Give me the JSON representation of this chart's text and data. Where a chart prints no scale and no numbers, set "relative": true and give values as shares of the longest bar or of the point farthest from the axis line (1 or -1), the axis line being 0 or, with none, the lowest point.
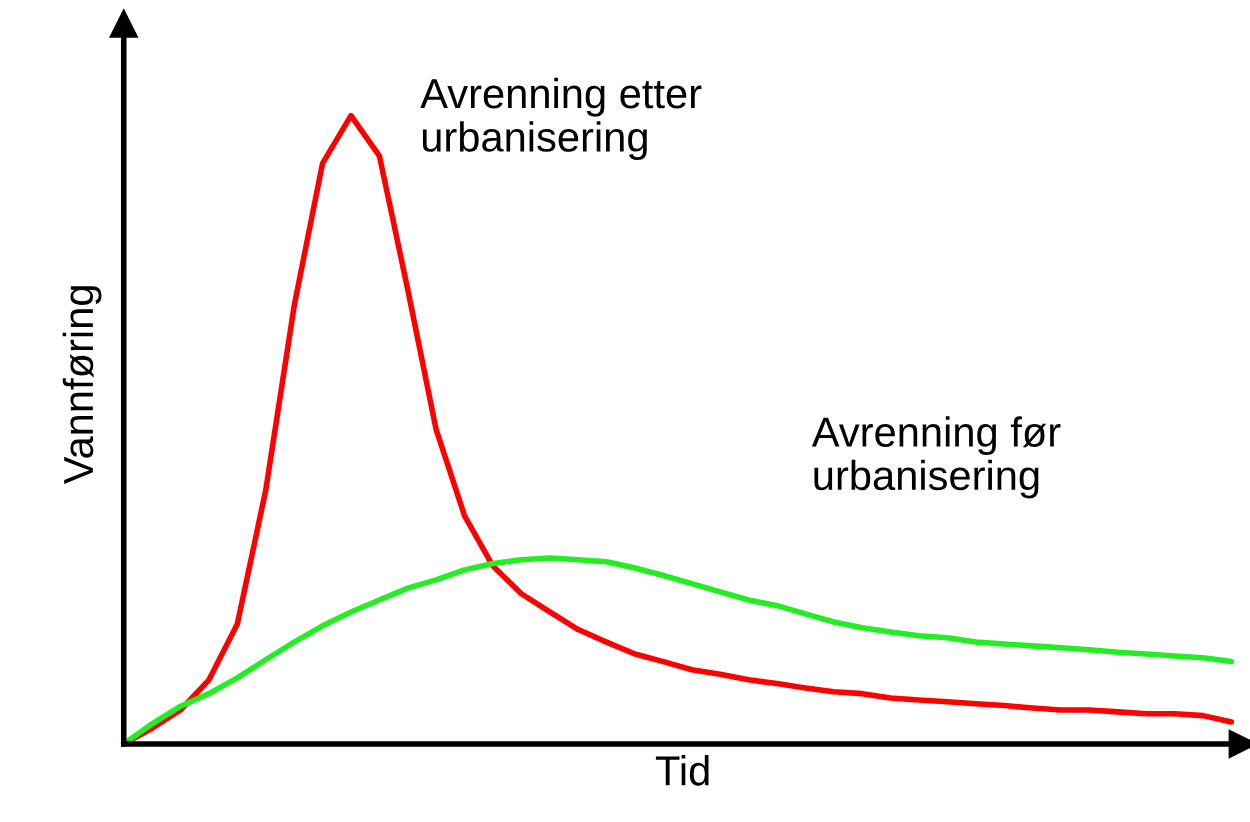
{
  "chart_data": {
    "type": "line",
    "relative": true,
    "xlabel": "Tid",
    "ylabel": "Vannføring",
    "legend": false,
    "marker": "none",
    "line_style": "solid",
    "categories": [
      null,
      null,
      null,
      null,
      null,
      null,
      null,
      null,
      null,
      null,
      null,
      null,
      null,
      null,
      null,
      null,
      null,
      null,
      null,
      null,
      null,
      null,
      null,
      null,
      null,
      null,
      null,
      null,
      null,
      null,
      null,
      null,
      null,
      null,
      null,
      null,
      null,
      null,
      null,
      null
    ],
    "series": [
      {
        "name": "Avrenning etter\nurbanisering",
        "color": "#ff0000",
        "values": [
          0,
          0.025,
          0.054,
          0.102,
          0.191,
          0.404,
          0.697,
          0.924,
          1,
          0.936,
          0.723,
          0.5,
          0.363,
          0.283,
          0.239,
          0.21,
          0.182,
          0.162,
          0.143,
          0.131,
          0.118,
          0.111,
          0.102,
          0.096,
          0.089,
          0.083,
          0.08,
          0.073,
          0.07,
          0.067,
          0.064,
          0.061,
          0.057,
          0.054,
          0.054,
          0.051,
          0.048,
          0.048,
          0.045,
          0.035
        ]
      },
      {
        "name": "Avrenning før\nurbanisering",
        "color": "#22ee22",
        "values": [
          0,
          0.032,
          0.06,
          0.08,
          0.105,
          0.134,
          0.162,
          0.188,
          0.21,
          0.229,
          0.248,
          0.261,
          0.277,
          0.287,
          0.293,
          0.296,
          0.293,
          0.29,
          0.28,
          0.268,
          0.255,
          0.242,
          0.229,
          0.22,
          0.207,
          0.194,
          0.185,
          0.178,
          0.172,
          0.169,
          0.162,
          0.159,
          0.156,
          0.153,
          0.15,
          0.146,
          0.143,
          0.14,
          0.137,
          0.131
        ]
      }
    ]
  }
}
